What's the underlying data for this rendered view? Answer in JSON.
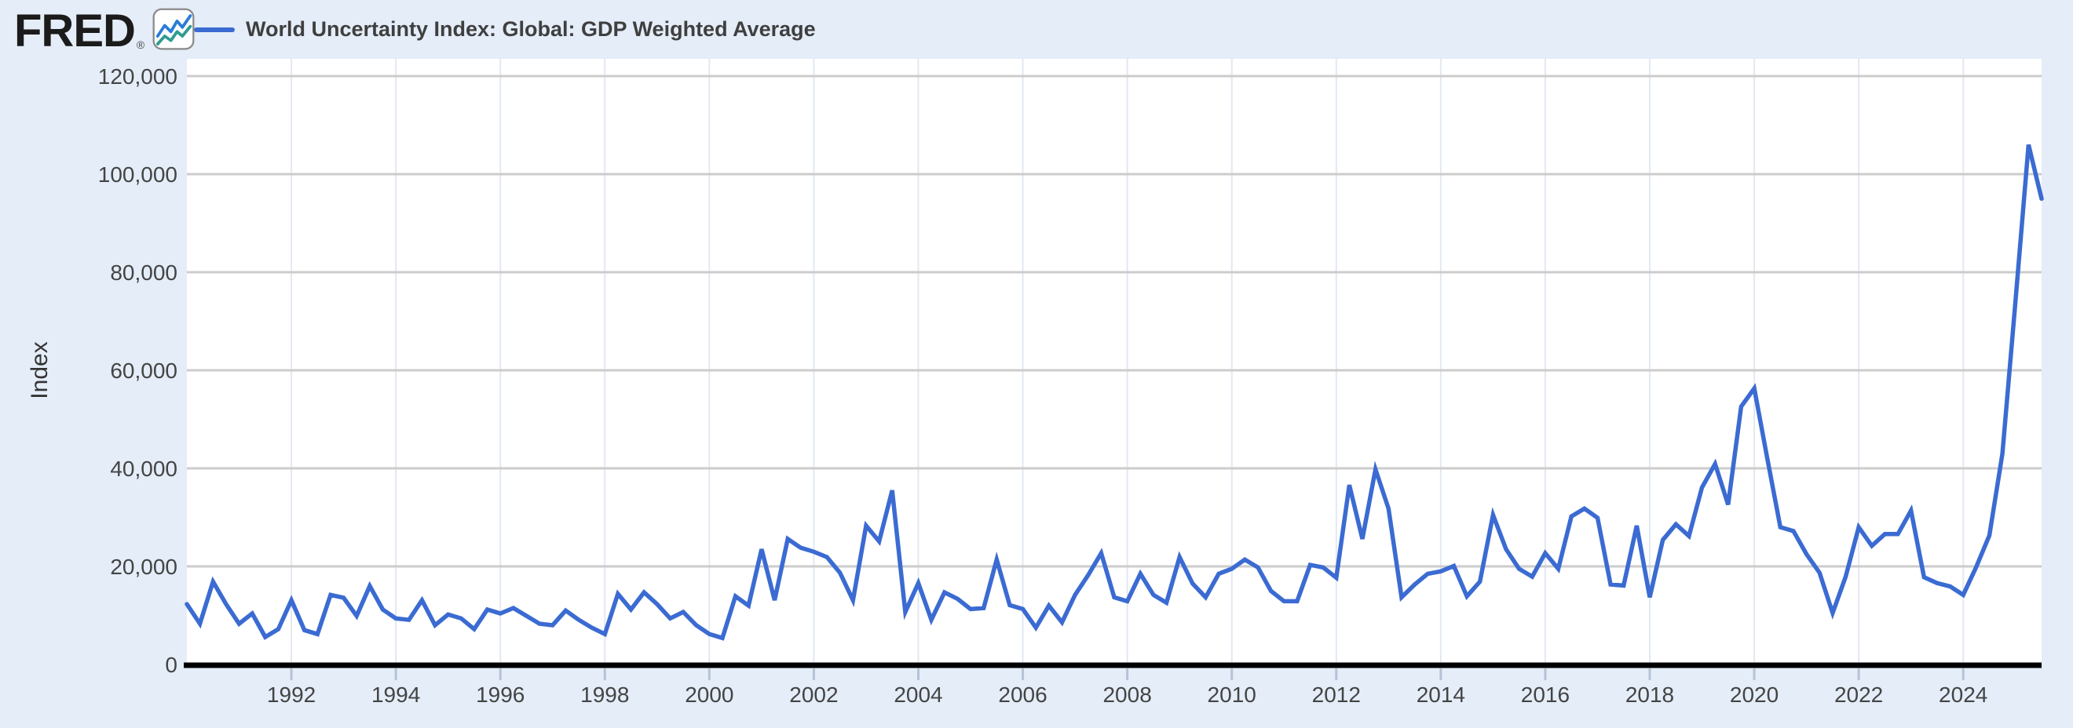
{
  "page": {
    "background": "#e4edf8"
  },
  "logo": {
    "text": "FRED",
    "registered": "®",
    "icon": "fred-sparkline-icon",
    "icon_line_top_color": "#2a7cd8",
    "icon_line_bottom_color": "#2f9c90"
  },
  "legend": {
    "label": "World Uncertainty Index: Global: GDP Weighted Average",
    "swatch_color": "#3b6bd2"
  },
  "chart_data": {
    "type": "line",
    "title": "World Uncertainty Index: Global: GDP Weighted Average",
    "ylabel": "Index",
    "xlabel": "",
    "ylim": [
      0,
      120000
    ],
    "grid": true,
    "legend_position": "top-left",
    "frequency": "quarterly",
    "start": "1990Q1",
    "end": "2025Q3",
    "yticks": [
      {
        "value": 0,
        "label": "0"
      },
      {
        "value": 20000,
        "label": "20,000"
      },
      {
        "value": 40000,
        "label": "40,000"
      },
      {
        "value": 60000,
        "label": "60,000"
      },
      {
        "value": 80000,
        "label": "80,000"
      },
      {
        "value": 100000,
        "label": "100,000"
      },
      {
        "value": 120000,
        "label": "120,000"
      }
    ],
    "xticks": [
      {
        "year": 1992,
        "label": "1992"
      },
      {
        "year": 1994,
        "label": "1994"
      },
      {
        "year": 1996,
        "label": "1996"
      },
      {
        "year": 1998,
        "label": "1998"
      },
      {
        "year": 2000,
        "label": "2000"
      },
      {
        "year": 2002,
        "label": "2002"
      },
      {
        "year": 2004,
        "label": "2004"
      },
      {
        "year": 2006,
        "label": "2006"
      },
      {
        "year": 2008,
        "label": "2008"
      },
      {
        "year": 2010,
        "label": "2010"
      },
      {
        "year": 2012,
        "label": "2012"
      },
      {
        "year": 2014,
        "label": "2014"
      },
      {
        "year": 2016,
        "label": "2016"
      },
      {
        "year": 2018,
        "label": "2018"
      },
      {
        "year": 2020,
        "label": "2020"
      },
      {
        "year": 2022,
        "label": "2022"
      },
      {
        "year": 2024,
        "label": "2024"
      }
    ],
    "series": [
      {
        "name": "World Uncertainty Index: Global: GDP Weighted Average",
        "color": "#3b6bd2",
        "values": [
          12300,
          8300,
          16900,
          12300,
          8300,
          10400,
          5600,
          7200,
          13100,
          7000,
          6200,
          14200,
          13600,
          9900,
          16000,
          11200,
          9400,
          9100,
          13100,
          8000,
          10200,
          9400,
          7200,
          11200,
          10400,
          11500,
          9900,
          8300,
          8000,
          11000,
          9100,
          7500,
          6200,
          14400,
          11200,
          14700,
          12300,
          9400,
          10700,
          8000,
          6200,
          5400,
          13900,
          12000,
          23500,
          13100,
          25600,
          23800,
          23000,
          21900,
          18700,
          13100,
          28300,
          25100,
          35500,
          10700,
          16600,
          9100,
          14700,
          13400,
          11300,
          11500,
          21400,
          12100,
          11300,
          7500,
          12000,
          8600,
          14200,
          18200,
          22700,
          13700,
          12900,
          18500,
          14200,
          12600,
          21900,
          16500,
          13700,
          18500,
          19500,
          21400,
          19800,
          15000,
          12900,
          12900,
          20300,
          19800,
          17700,
          36600,
          25600,
          39800,
          31800,
          13700,
          16300,
          18500,
          19000,
          20100,
          13900,
          16900,
          30500,
          23500,
          19500,
          17900,
          22700,
          19500,
          30200,
          31800,
          29900,
          16300,
          16100,
          28300,
          13700,
          25400,
          28600,
          26200,
          36100,
          40900,
          32600,
          52600,
          56300,
          42000,
          28000,
          27200,
          22500,
          18700,
          10500,
          17900,
          28000,
          24200,
          26600,
          26600,
          31400,
          17800,
          16600,
          15900,
          14200,
          19900,
          26300,
          43000,
          74000,
          106000,
          95000
        ]
      }
    ],
    "colors": {
      "plot_background": "#ffffff",
      "gridline": "#cccccc",
      "year_gridline": "#e2e8f2",
      "axis_line": "#000000",
      "tick_stub": "#b6c2d6",
      "tick_label": "#444444",
      "axis_title": "#333333"
    }
  }
}
